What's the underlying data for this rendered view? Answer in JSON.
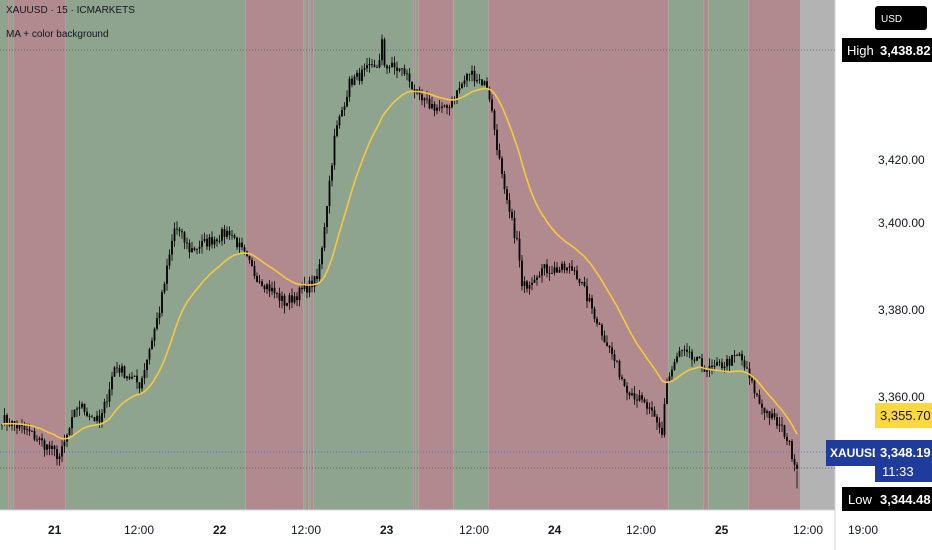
{
  "header": {
    "symbol_line": "XAUUSD · 15 · ICMARKETS",
    "indicator": "MA + color background"
  },
  "currency_button": "USD",
  "colors": {
    "bull_bg": "#8ea48e",
    "bear_bg": "#b08a8f",
    "ma_line": "#f5c842",
    "candle": "#000000",
    "price_tag": "#1f3c9c",
    "ma_tag": "#ffd740"
  },
  "price_scale": {
    "ticks": [
      "3,420.00",
      "3,400.00",
      "3,380.00",
      "3,360.00"
    ],
    "high_label": "High",
    "high_value": "3,438.82",
    "ma_value": "3,355.70",
    "last_symbol": "XAUUSD",
    "last_value": "3,348.19",
    "countdown": "11:33",
    "low_label": "Low",
    "low_value": "3,344.48"
  },
  "time_axis": {
    "labels": [
      "21",
      "12:00",
      "22",
      "12:00",
      "23",
      "12:00",
      "24",
      "12:00",
      "25",
      "12:00",
      "19:00"
    ]
  },
  "chart_data": {
    "type": "line",
    "x": [
      "21",
      "12:00",
      "22",
      "12:00",
      "23",
      "12:00",
      "24",
      "12:00",
      "25",
      "12:00"
    ],
    "series": [
      {
        "values": [
          3353.0,
          3366.0,
          3396.0,
          3387.0,
          3430.0,
          3425.0,
          3390.0,
          3365.0,
          3371.0,
          3348.2
        ]
      },
      {
        "values": [
          3353.5,
          3363.0,
          3392.0,
          3388.0,
          3426.0,
          3426.0,
          3392.0,
          3372.0,
          3368.0,
          3355.7
        ]
      }
    ],
    "ylim": [
      3340.0,
      3446.0
    ],
    "high": 3438.82,
    "low": 3344.48,
    "last": 3348.19,
    "ma_last": 3355.7,
    "grid": false
  }
}
